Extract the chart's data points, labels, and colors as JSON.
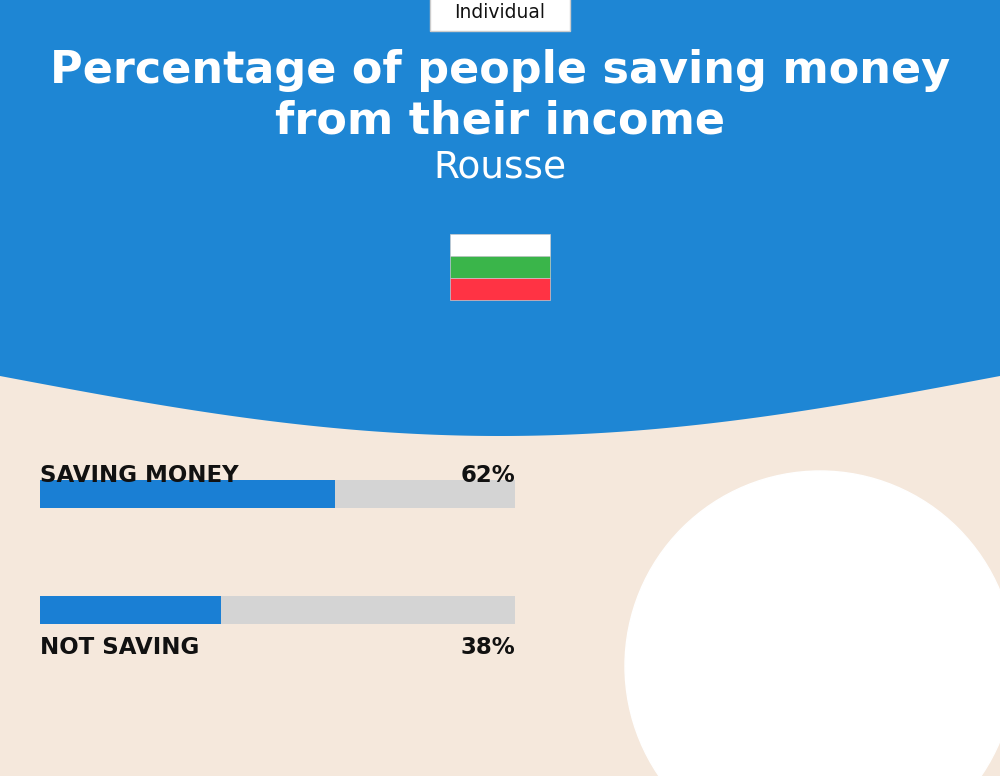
{
  "title_line1": "Percentage of people saving money",
  "title_line2": "from their income",
  "subtitle": "Rousse",
  "tab_label": "Individual",
  "bg_top_color": "#1e86d4",
  "bg_bottom_color": "#f5e8dc",
  "bar_color": "#1a7fd4",
  "bar_bg_color": "#d4d4d4",
  "categories": [
    "SAVING MONEY",
    "NOT SAVING"
  ],
  "values": [
    62,
    38
  ],
  "bar_label_color": "#111111",
  "title_color": "#ffffff",
  "subtitle_color": "#ffffff",
  "tab_text_color": "#111111",
  "flag_white": "#ffffff",
  "flag_green": "#3ab54a",
  "flag_red": "#ff3344"
}
